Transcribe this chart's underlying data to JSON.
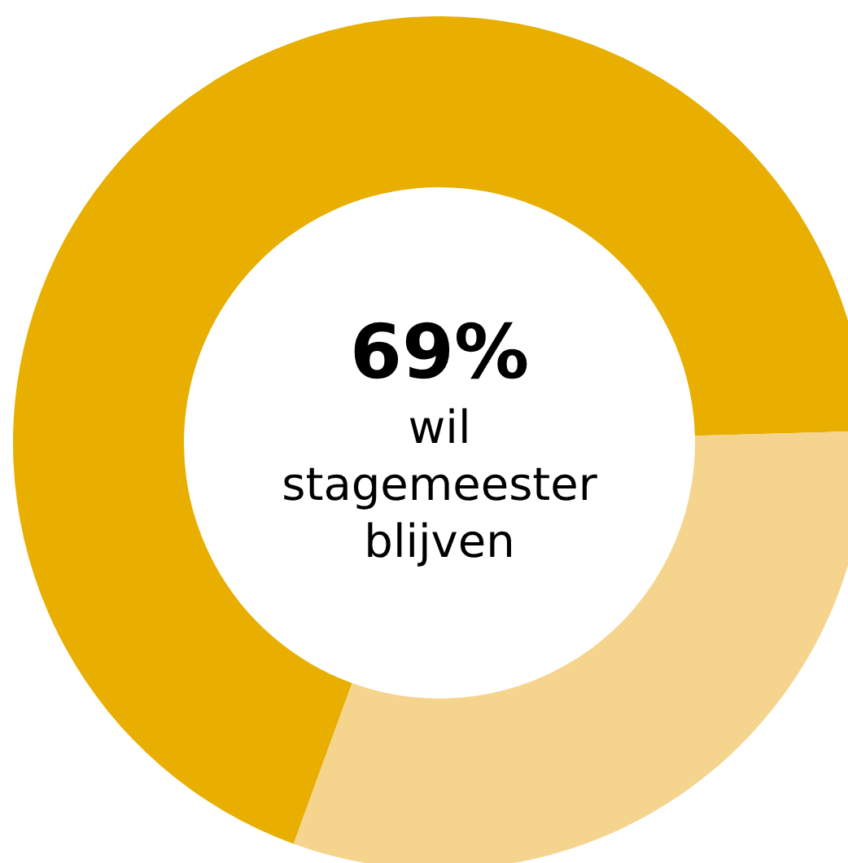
{
  "chart_data": {
    "type": "donut",
    "subtitle": "wil stagemeester blijven",
    "categories": [
      null,
      null
    ],
    "values": [
      69,
      31
    ],
    "colors": [
      "#e8ae00",
      "#f5d48e"
    ],
    "value_labels": [
      "69%",
      null
    ]
  }
}
